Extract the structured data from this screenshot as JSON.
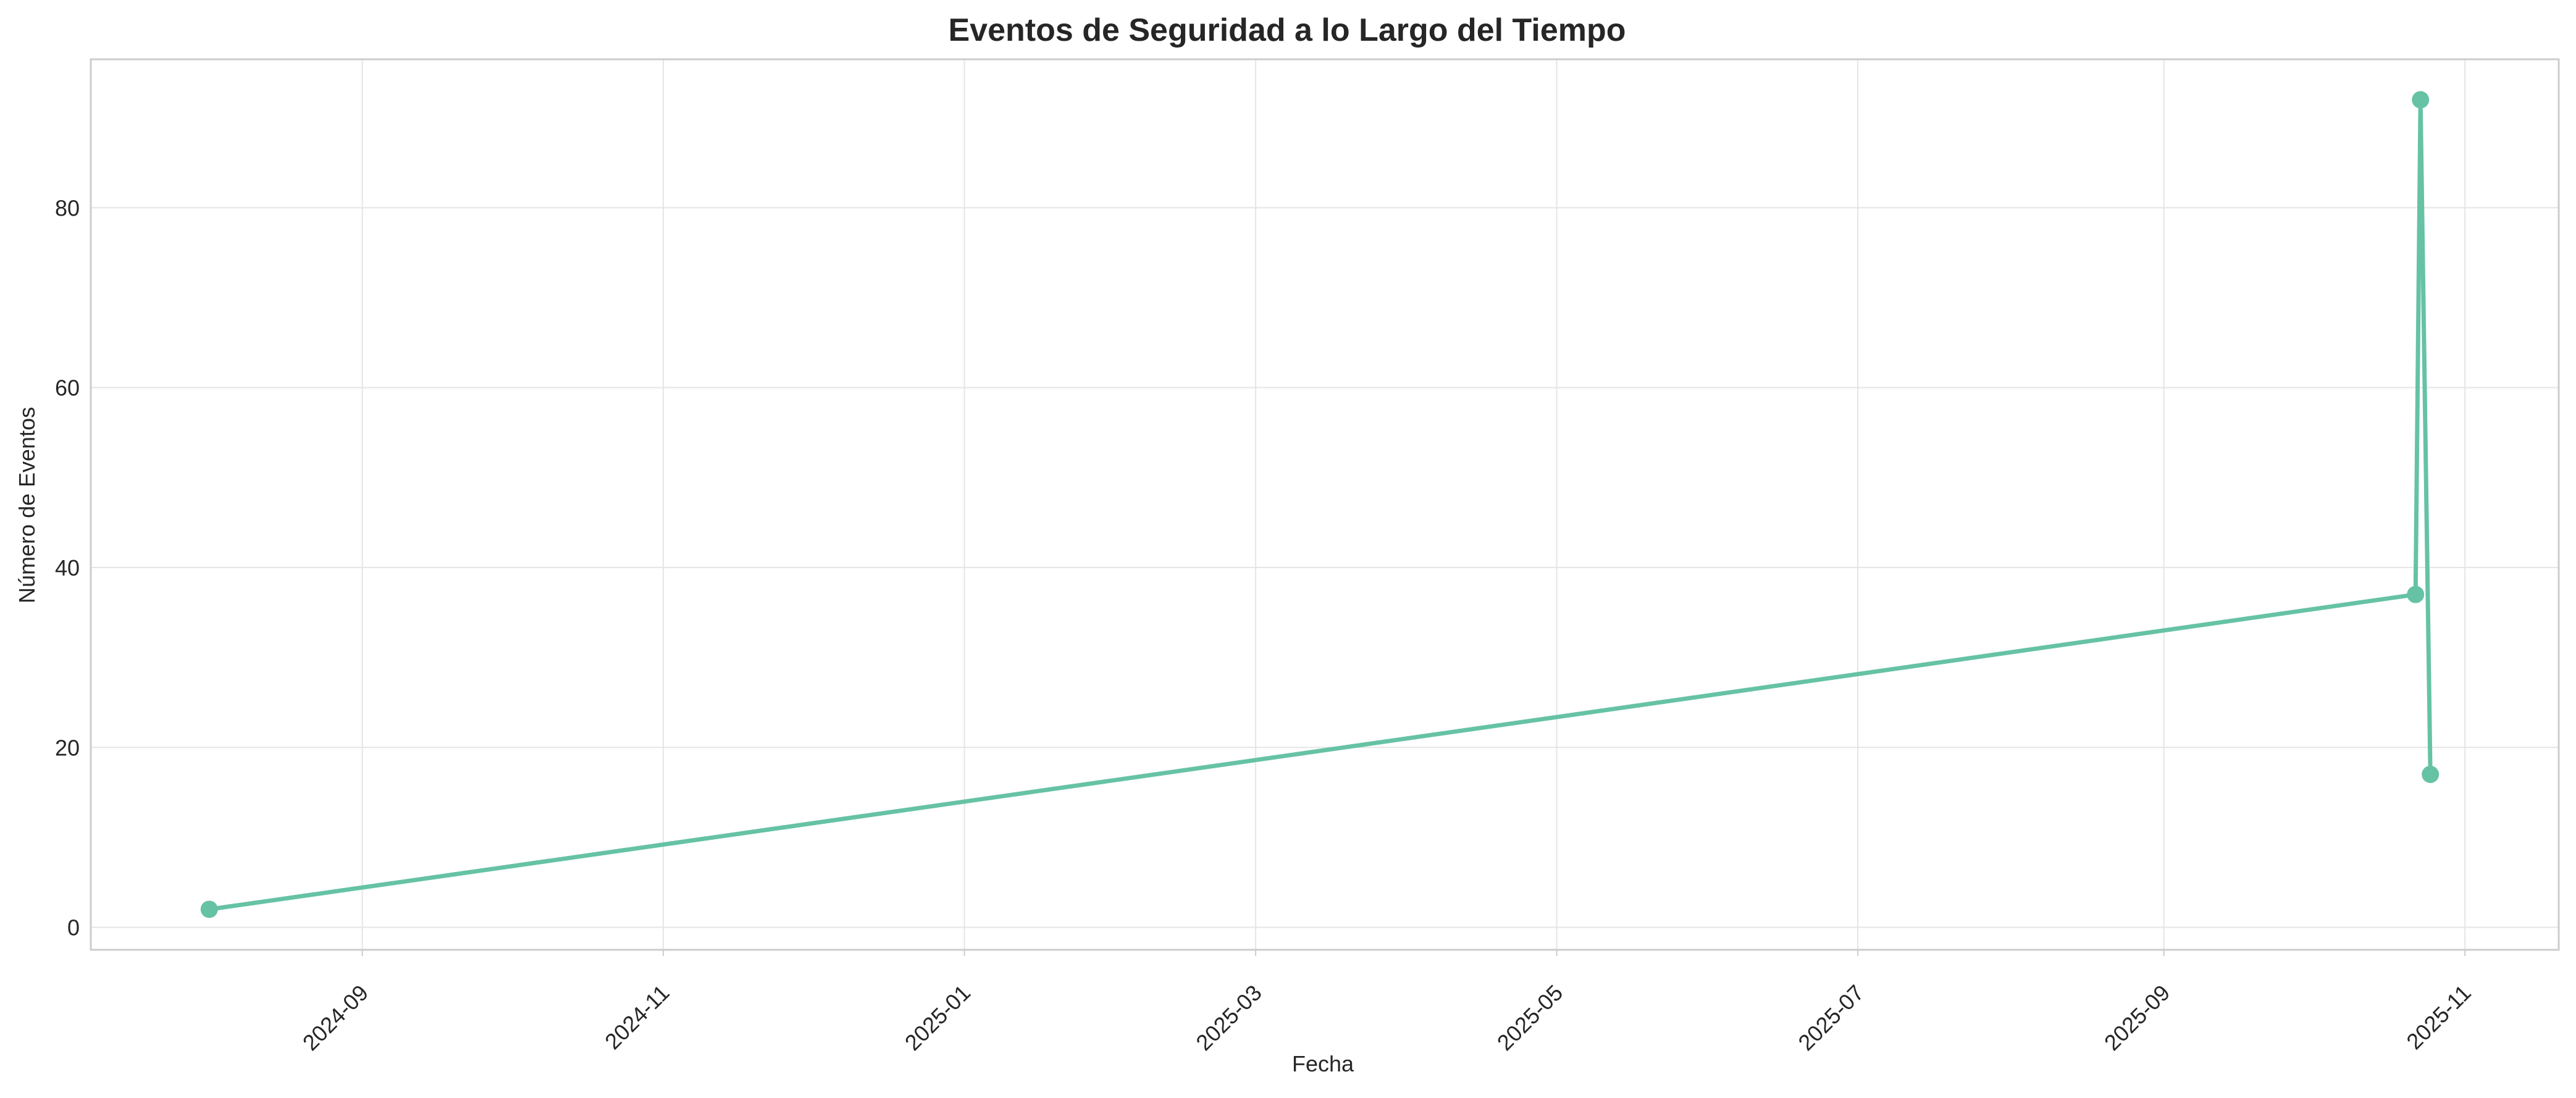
{
  "chart_data": {
    "type": "line",
    "title": "Eventos de Seguridad a lo Largo del Tiempo",
    "xlabel": "Fecha",
    "ylabel": "Número de Eventos",
    "x_type": "date",
    "xlim": [
      "2024-07-08",
      "2025-11-20"
    ],
    "ylim": [
      -2.5,
      96.5
    ],
    "x_ticks": [
      "2024-09",
      "2024-11",
      "2025-01",
      "2025-03",
      "2025-05",
      "2025-07",
      "2025-09",
      "2025-11"
    ],
    "y_ticks": [
      0,
      20,
      40,
      60,
      80
    ],
    "grid": true,
    "legend": "none",
    "series": [
      {
        "color": "#66c2a5",
        "points": [
          {
            "x": "2024-08-01",
            "y": 2
          },
          {
            "x": "2025-10-22",
            "y": 37
          },
          {
            "x": "2025-10-23",
            "y": 92
          },
          {
            "x": "2025-10-25",
            "y": 17
          }
        ]
      }
    ]
  }
}
